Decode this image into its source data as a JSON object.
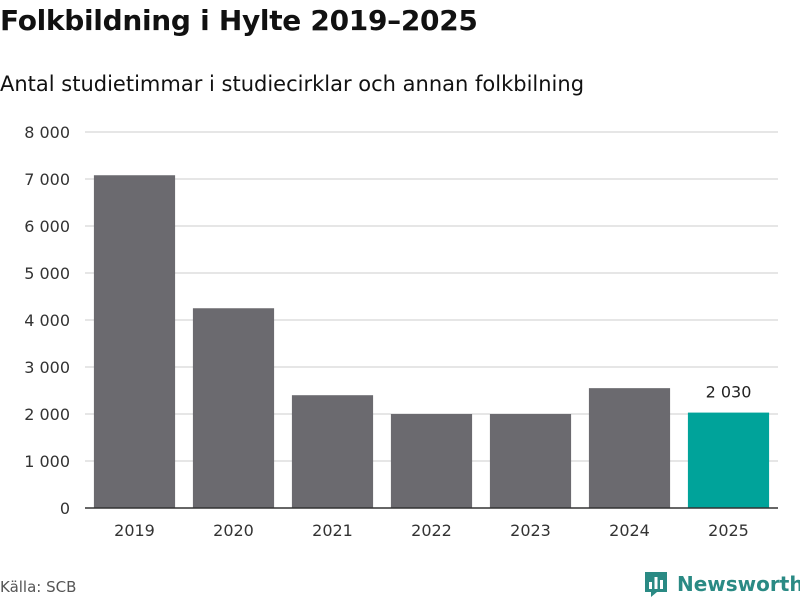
{
  "title": "Folkbildning i Hylte 2019–2025",
  "subtitle": "Antal studietimmar i studiecirklar och annan folkbilning",
  "source": "Källa: SCB",
  "brand": {
    "name": "Newsworthy",
    "icon": "bar-chart-logo-icon"
  },
  "colors": {
    "bar": "#6b6a6f",
    "highlight": "#00a39a",
    "grid": "#dddddd",
    "axis": "#333333",
    "brand": "#2a8a84"
  },
  "chart_data": {
    "type": "bar",
    "categories": [
      "2019",
      "2020",
      "2021",
      "2022",
      "2023",
      "2024",
      "2025"
    ],
    "values": [
      7080,
      4250,
      2400,
      2000,
      2000,
      2550,
      2030
    ],
    "highlight_index": 6,
    "data_labels": [
      {
        "index": 6,
        "text": "2 030"
      }
    ],
    "ylim": [
      0,
      8000
    ],
    "yticks": [
      0,
      1000,
      2000,
      3000,
      4000,
      5000,
      6000,
      7000,
      8000
    ],
    "ytick_labels": [
      "0",
      "1 000",
      "2 000",
      "3 000",
      "4 000",
      "5 000",
      "6 000",
      "7 000",
      "8 000"
    ],
    "xlabel": "",
    "ylabel": "",
    "grid": true,
    "legend": "none"
  }
}
